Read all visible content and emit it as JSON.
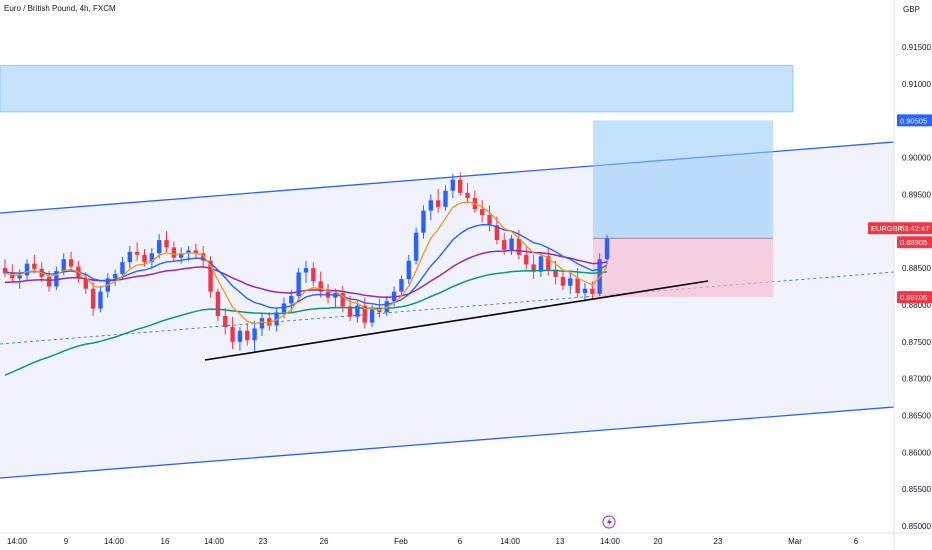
{
  "header": {
    "instrument": "Euro / British Pound",
    "interval": "4h",
    "exchange": "FXCM",
    "sep1": ", ",
    "sep2": ", "
  },
  "chart_data": {
    "type": "candlestick",
    "currency_label": "GBP",
    "y_ticks": [
      "0.91500",
      "0.91000",
      "0.90500",
      "0.90000",
      "0.89500",
      "0.89000",
      "0.88500",
      "0.88000",
      "0.87500",
      "0.87000",
      "0.86500",
      "0.86000",
      "0.85500",
      "0.85000"
    ],
    "x_ticks": [
      "14:00",
      "9",
      "14:00",
      "16",
      "14:00",
      "23",
      "26",
      "Feb",
      "6",
      "14:00",
      "13",
      "14:00",
      "20",
      "23",
      "Mar",
      "6"
    ],
    "price_tags": [
      {
        "label": "0.90505",
        "value": 0.90505,
        "color": "#2962ff"
      },
      {
        "label": "EURGBP",
        "value": 0.88905,
        "color": "#f23645"
      },
      {
        "label": "03:42:47",
        "value": 0.88905,
        "color": "#f23645"
      },
      {
        "label": "0.88905",
        "value": 0.88905,
        "color": "#f23645"
      },
      {
        "label": "0.88105",
        "value": 0.88105,
        "color": "#f23645"
      }
    ],
    "position": {
      "entry": 0.88905,
      "target": 0.90505,
      "stop": 0.88105
    },
    "supply_zone": {
      "from": 0.9062,
      "to": 0.9125
    },
    "colors": {
      "up": "#2962ff",
      "down": "#f23645",
      "ema_fast": "#f7931a",
      "ema_mid": "#2962ff",
      "ema_slow": "#9c27b0",
      "ema_long": "#089981",
      "channel": "#2962ff",
      "zone": "#bbdefb"
    },
    "candles": [
      [
        0.885,
        0.8862,
        0.8838,
        0.8843
      ],
      [
        0.8843,
        0.8855,
        0.883,
        0.8836
      ],
      [
        0.8836,
        0.8848,
        0.8822,
        0.884
      ],
      [
        0.884,
        0.8862,
        0.8832,
        0.8856
      ],
      [
        0.8856,
        0.8868,
        0.8843,
        0.8849
      ],
      [
        0.8849,
        0.8858,
        0.8831,
        0.8838
      ],
      [
        0.8838,
        0.8846,
        0.8818,
        0.8825
      ],
      [
        0.8825,
        0.8852,
        0.882,
        0.8846
      ],
      [
        0.8846,
        0.887,
        0.884,
        0.8862
      ],
      [
        0.8862,
        0.8872,
        0.8847,
        0.8852
      ],
      [
        0.8852,
        0.886,
        0.883,
        0.8836
      ],
      [
        0.8836,
        0.8844,
        0.8815,
        0.8822
      ],
      [
        0.8822,
        0.8831,
        0.8785,
        0.8795
      ],
      [
        0.8795,
        0.8826,
        0.879,
        0.8818
      ],
      [
        0.8818,
        0.8843,
        0.881,
        0.8836
      ],
      [
        0.8836,
        0.8848,
        0.8826,
        0.8842
      ],
      [
        0.8842,
        0.8865,
        0.8835,
        0.8858
      ],
      [
        0.8858,
        0.888,
        0.885,
        0.8872
      ],
      [
        0.8872,
        0.8885,
        0.886,
        0.8868
      ],
      [
        0.8868,
        0.8876,
        0.8852,
        0.8858
      ],
      [
        0.8858,
        0.8877,
        0.885,
        0.887
      ],
      [
        0.887,
        0.8896,
        0.8863,
        0.8888
      ],
      [
        0.8888,
        0.89,
        0.8872,
        0.8878
      ],
      [
        0.8878,
        0.8886,
        0.8858,
        0.8864
      ],
      [
        0.8864,
        0.8878,
        0.8856,
        0.887
      ],
      [
        0.887,
        0.888,
        0.886,
        0.8874
      ],
      [
        0.8874,
        0.8883,
        0.8863,
        0.887
      ],
      [
        0.887,
        0.888,
        0.8852,
        0.886
      ],
      [
        0.886,
        0.8866,
        0.881,
        0.8818
      ],
      [
        0.8818,
        0.8822,
        0.8778,
        0.8785
      ],
      [
        0.8785,
        0.8796,
        0.876,
        0.877
      ],
      [
        0.877,
        0.8784,
        0.874,
        0.875
      ],
      [
        0.875,
        0.877,
        0.8738,
        0.8765
      ],
      [
        0.8765,
        0.8775,
        0.8745,
        0.8752
      ],
      [
        0.8752,
        0.8778,
        0.8735,
        0.8768
      ],
      [
        0.8768,
        0.8788,
        0.8758,
        0.8782
      ],
      [
        0.8782,
        0.879,
        0.8765,
        0.8772
      ],
      [
        0.8772,
        0.8796,
        0.8764,
        0.879
      ],
      [
        0.879,
        0.881,
        0.8782,
        0.8802
      ],
      [
        0.8802,
        0.882,
        0.879,
        0.8812
      ],
      [
        0.8812,
        0.885,
        0.8806,
        0.8844
      ],
      [
        0.8844,
        0.886,
        0.883,
        0.885
      ],
      [
        0.885,
        0.8858,
        0.8825,
        0.8832
      ],
      [
        0.8832,
        0.8845,
        0.881,
        0.8818
      ],
      [
        0.8818,
        0.8828,
        0.8802,
        0.881
      ],
      [
        0.881,
        0.8822,
        0.8795,
        0.8816
      ],
      [
        0.8816,
        0.8826,
        0.879,
        0.8798
      ],
      [
        0.8798,
        0.8812,
        0.8778,
        0.8784
      ],
      [
        0.8784,
        0.8805,
        0.8776,
        0.8799
      ],
      [
        0.8799,
        0.881,
        0.8768,
        0.8776
      ],
      [
        0.8776,
        0.88,
        0.877,
        0.8794
      ],
      [
        0.8794,
        0.8808,
        0.8783,
        0.879
      ],
      [
        0.879,
        0.8812,
        0.8785,
        0.8805
      ],
      [
        0.8805,
        0.8825,
        0.8798,
        0.8818
      ],
      [
        0.8818,
        0.884,
        0.8812,
        0.8835
      ],
      [
        0.8835,
        0.8868,
        0.8828,
        0.886
      ],
      [
        0.886,
        0.8905,
        0.8855,
        0.8898
      ],
      [
        0.8898,
        0.8935,
        0.889,
        0.8928
      ],
      [
        0.8928,
        0.895,
        0.8915,
        0.8942
      ],
      [
        0.8942,
        0.8958,
        0.8925,
        0.8933
      ],
      [
        0.8933,
        0.8962,
        0.8928,
        0.8955
      ],
      [
        0.8955,
        0.8978,
        0.8945,
        0.897
      ],
      [
        0.897,
        0.898,
        0.8948,
        0.8952
      ],
      [
        0.8952,
        0.8965,
        0.8938,
        0.8945
      ],
      [
        0.8945,
        0.8955,
        0.8925,
        0.893
      ],
      [
        0.893,
        0.8942,
        0.8912,
        0.8922
      ],
      [
        0.8922,
        0.8935,
        0.89,
        0.8908
      ],
      [
        0.8908,
        0.892,
        0.8882,
        0.8888
      ],
      [
        0.8888,
        0.8898,
        0.8868,
        0.8875
      ],
      [
        0.8875,
        0.8895,
        0.8868,
        0.889
      ],
      [
        0.889,
        0.8902,
        0.8862,
        0.8868
      ],
      [
        0.8868,
        0.888,
        0.8848,
        0.8855
      ],
      [
        0.8855,
        0.8868,
        0.8835,
        0.8845
      ],
      [
        0.8845,
        0.8872,
        0.8838,
        0.8866
      ],
      [
        0.8866,
        0.8878,
        0.884,
        0.8848
      ],
      [
        0.8848,
        0.886,
        0.8828,
        0.8838
      ],
      [
        0.8838,
        0.8846,
        0.882,
        0.8826
      ],
      [
        0.8826,
        0.8845,
        0.8815,
        0.8836
      ],
      [
        0.8836,
        0.885,
        0.881,
        0.8816
      ],
      [
        0.8816,
        0.883,
        0.8805,
        0.8822
      ],
      [
        0.8822,
        0.8832,
        0.8808,
        0.8815
      ],
      [
        0.8815,
        0.887,
        0.8812,
        0.8862
      ],
      [
        0.8862,
        0.8895,
        0.8855,
        0.889
      ]
    ]
  }
}
